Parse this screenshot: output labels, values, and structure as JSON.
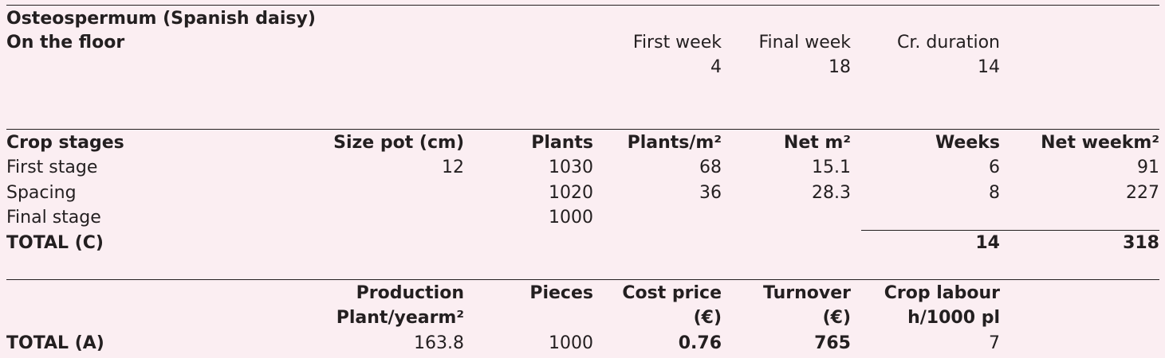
{
  "header": {
    "title": "Osteospermum (Spanish daisy)",
    "subtitle": "On the floor",
    "first_week_label": "First week",
    "final_week_label": "Final week",
    "duration_label": "Cr. duration",
    "first_week": "4",
    "final_week": "18",
    "duration": "14"
  },
  "stages": {
    "headers": {
      "crop_stages": "Crop stages",
      "size_pot": "Size pot (cm)",
      "plants": "Plants",
      "plants_m2": "Plants/m²",
      "net_m2": "Net m²",
      "weeks": "Weeks",
      "net_weekm2": "Net weekm²"
    },
    "rows": [
      {
        "name": "First stage",
        "size_pot": "12",
        "plants": "1030",
        "plants_m2": "68",
        "net_m2": "15.1",
        "weeks": "6",
        "net_weekm2": "91"
      },
      {
        "name": "Spacing",
        "size_pot": "",
        "plants": "1020",
        "plants_m2": "36",
        "net_m2": "28.3",
        "weeks": "8",
        "net_weekm2": "227"
      },
      {
        "name": "Final stage",
        "size_pot": "",
        "plants": "1000",
        "plants_m2": "",
        "net_m2": "",
        "weeks": "",
        "net_weekm2": ""
      }
    ],
    "total": {
      "label": "TOTAL (C)",
      "weeks": "14",
      "net_weekm2": "318"
    }
  },
  "summary": {
    "headers": {
      "production_1": "Production",
      "production_2": "Plant/yearm²",
      "pieces": "Pieces",
      "cost_price_1": "Cost price",
      "cost_price_2": "(€)",
      "turnover_1": "Turnover",
      "turnover_2": "(€)",
      "labour_1": "Crop labour",
      "labour_2": "h/1000 pl"
    },
    "total": {
      "label": "TOTAL (A)",
      "production": "163.8",
      "pieces": "1000",
      "cost_price": "0.76",
      "turnover": "765",
      "labour": "7"
    }
  }
}
